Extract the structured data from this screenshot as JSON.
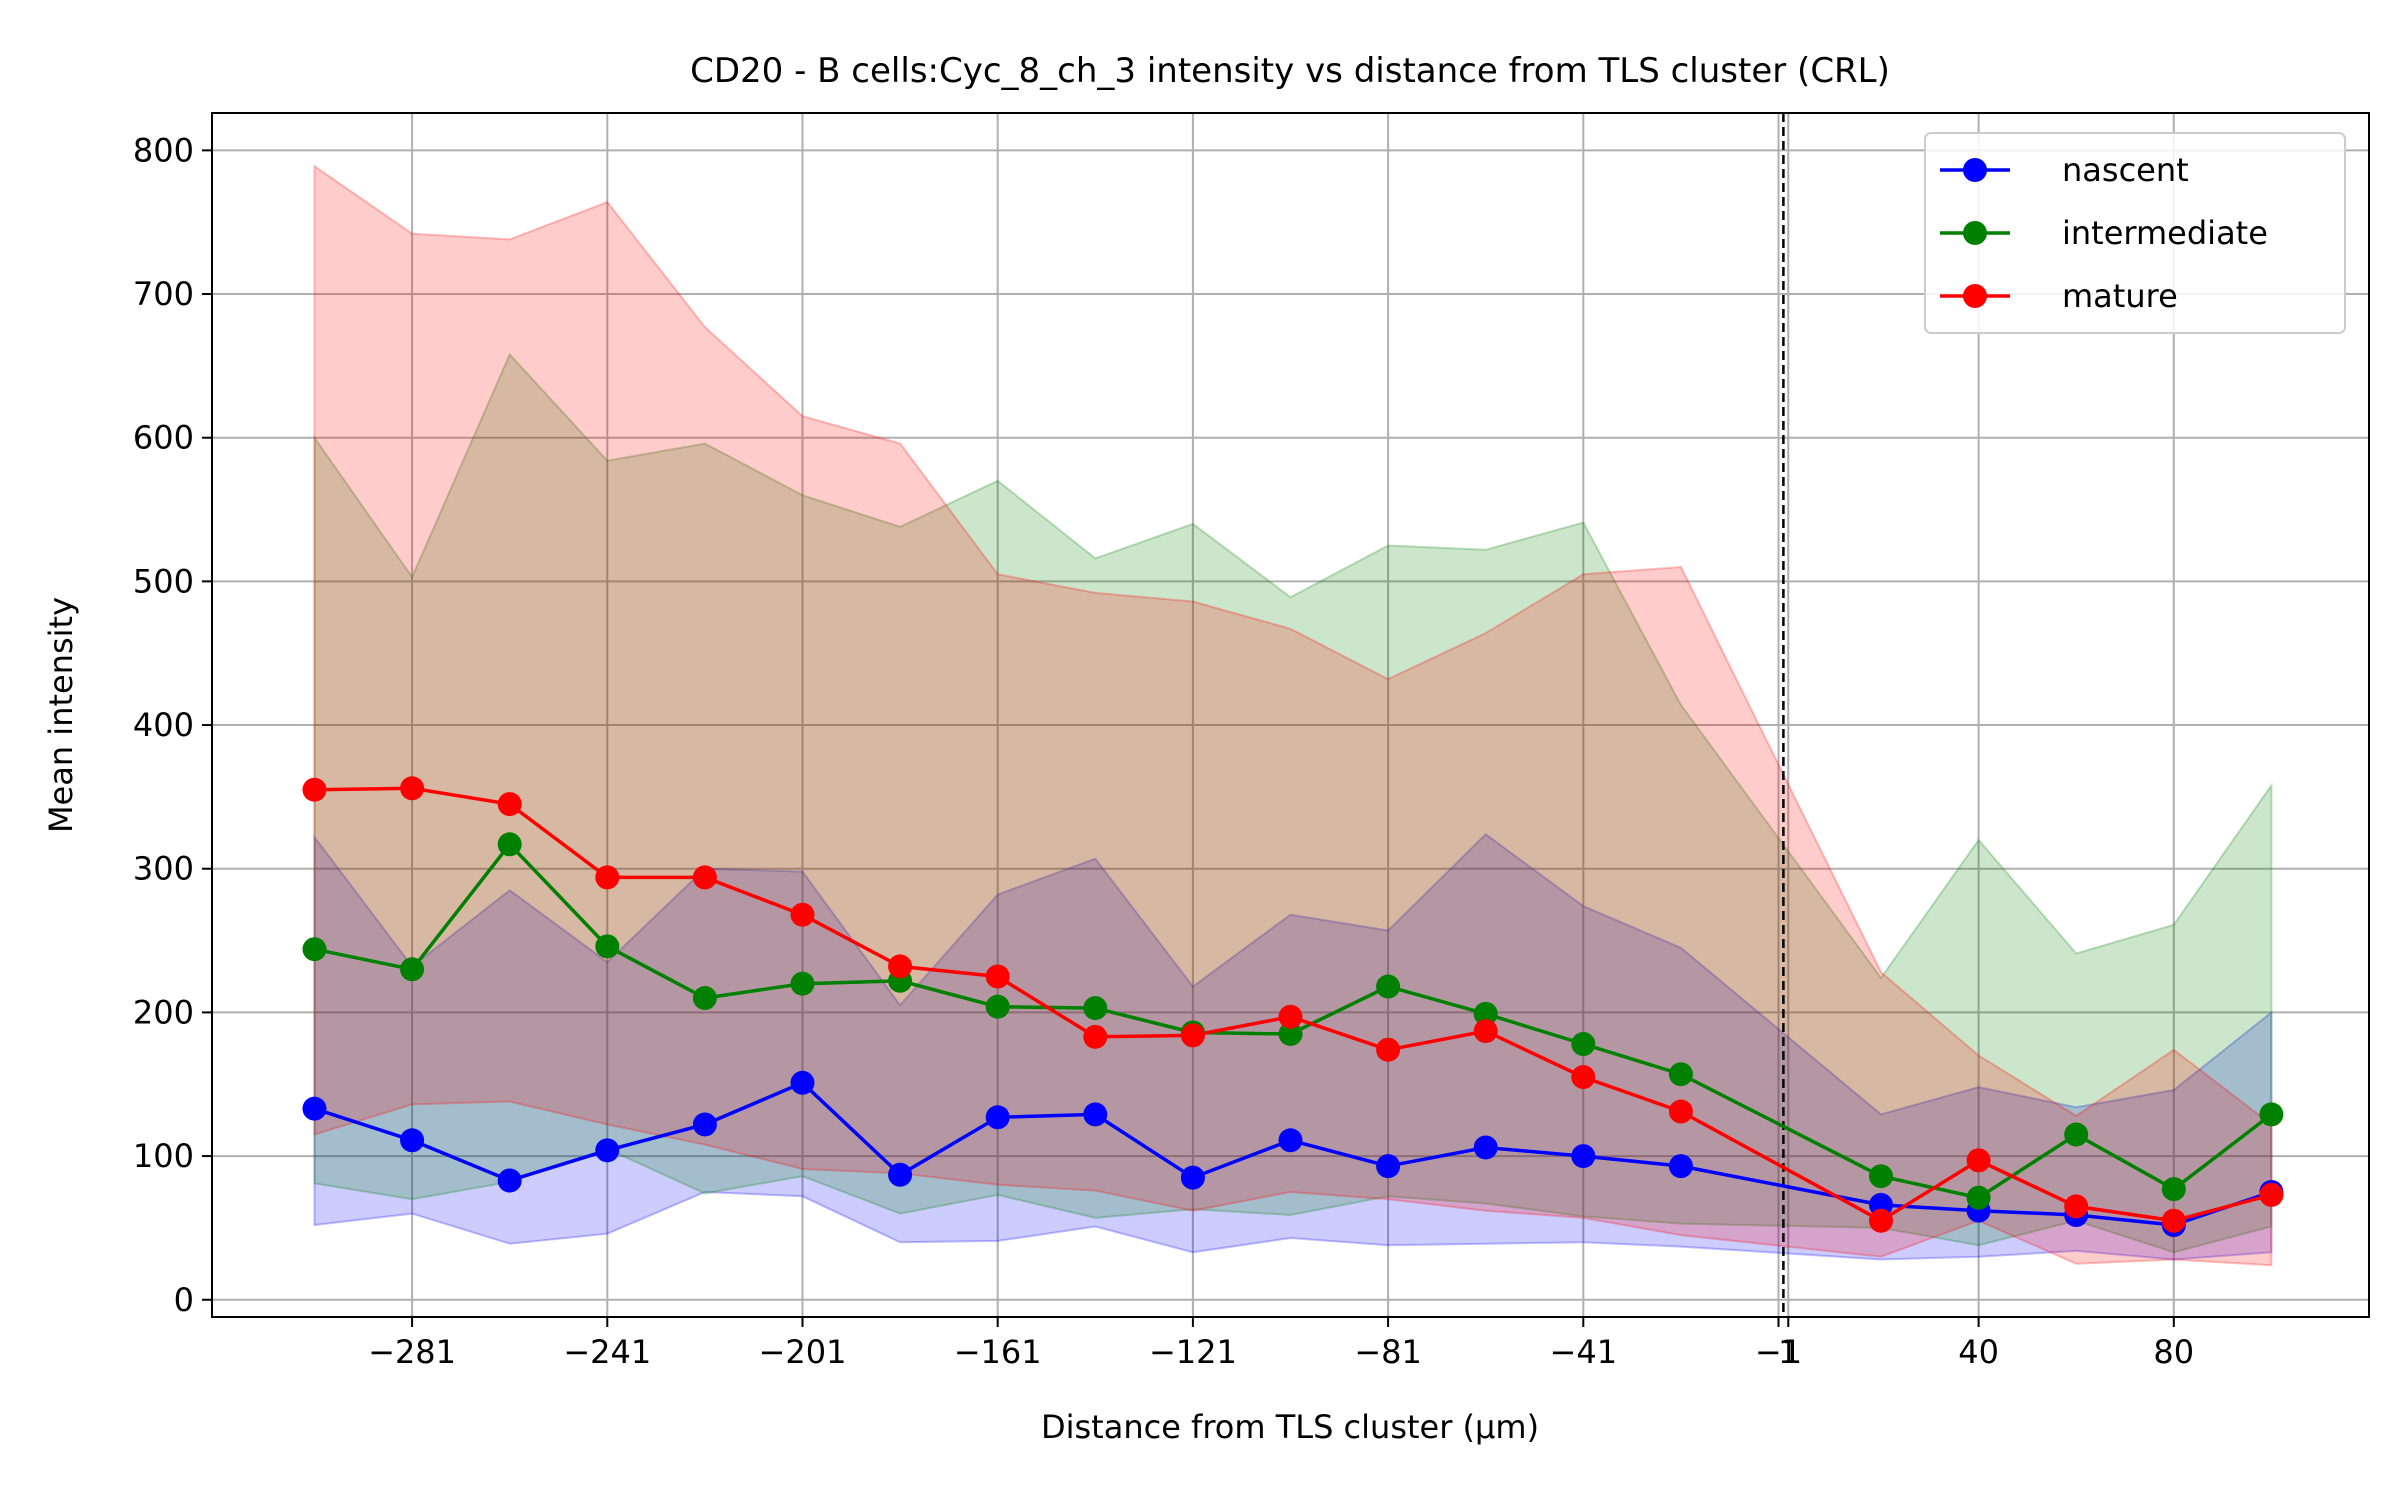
{
  "chart_data": {
    "type": "line",
    "title": "CD20 - B cells:Cyc_8_ch_3 intensity vs distance from TLS cluster (CRL)",
    "xlabel": "Distance from TLS cluster (μm)",
    "ylabel": "Mean intensity",
    "x": [
      -301,
      -281,
      -261,
      -241,
      -221,
      -201,
      -181,
      -161,
      -141,
      -121,
      -101,
      -81,
      -61,
      -41,
      -21,
      20,
      40,
      60,
      80,
      100
    ],
    "xlim": [
      -322,
      120
    ],
    "ylim": [
      -12,
      826
    ],
    "x_ticks": [
      -281,
      -241,
      -201,
      -161,
      -121,
      -81,
      -41,
      -1,
      1,
      40,
      80
    ],
    "x_tick_labels": [
      "−281",
      "−241",
      "−201",
      "−161",
      "−121",
      "−81",
      "−41",
      "−1",
      "1",
      "40",
      "80"
    ],
    "y_ticks": [
      0,
      100,
      200,
      300,
      400,
      500,
      600,
      700,
      800
    ],
    "y_tick_labels": [
      "0",
      "100",
      "200",
      "300",
      "400",
      "500",
      "600",
      "700",
      "800"
    ],
    "grid": true,
    "legend_position": "top-right",
    "reference_line": {
      "x": 0,
      "style": "dashed"
    },
    "series": [
      {
        "name": "nascent",
        "color": "#0000ff",
        "values": [
          133,
          111,
          83,
          104,
          122,
          151,
          87,
          127,
          129,
          85,
          111,
          93,
          106,
          100,
          93,
          66,
          62,
          59,
          52,
          75
        ],
        "upper": [
          322,
          232,
          285,
          235,
          300,
          298,
          205,
          282,
          307,
          218,
          268,
          257,
          324,
          274,
          245,
          129,
          148,
          134,
          146,
          200
        ],
        "lower": [
          52,
          60,
          39,
          46,
          75,
          72,
          40,
          41,
          51,
          33,
          43,
          38,
          39,
          40,
          37,
          28,
          30,
          34,
          28,
          33
        ]
      },
      {
        "name": "intermediate",
        "color": "#008000",
        "values": [
          244,
          230,
          317,
          246,
          210,
          220,
          222,
          204,
          203,
          186,
          185,
          218,
          199,
          178,
          157,
          86,
          71,
          115,
          77,
          129
        ],
        "upper": [
          600,
          503,
          658,
          584,
          596,
          560,
          538,
          570,
          516,
          540,
          489,
          525,
          522,
          541,
          414,
          224,
          320,
          241,
          261,
          358
        ],
        "lower": [
          81,
          70,
          82,
          105,
          74,
          86,
          60,
          73,
          57,
          63,
          59,
          72,
          67,
          58,
          53,
          50,
          38,
          55,
          33,
          51
        ]
      },
      {
        "name": "mature",
        "color": "#ff0000",
        "values": [
          355,
          356,
          345,
          294,
          294,
          268,
          232,
          225,
          183,
          184,
          197,
          174,
          187,
          155,
          131,
          55,
          97,
          65,
          55,
          73
        ],
        "upper": [
          789,
          742,
          738,
          764,
          677,
          615,
          596,
          505,
          492,
          486,
          467,
          432,
          464,
          505,
          510,
          228,
          170,
          128,
          174,
          122
        ],
        "lower": [
          115,
          136,
          138,
          122,
          108,
          91,
          88,
          80,
          76,
          62,
          75,
          70,
          62,
          57,
          45,
          30,
          55,
          25,
          28,
          24
        ]
      }
    ]
  }
}
